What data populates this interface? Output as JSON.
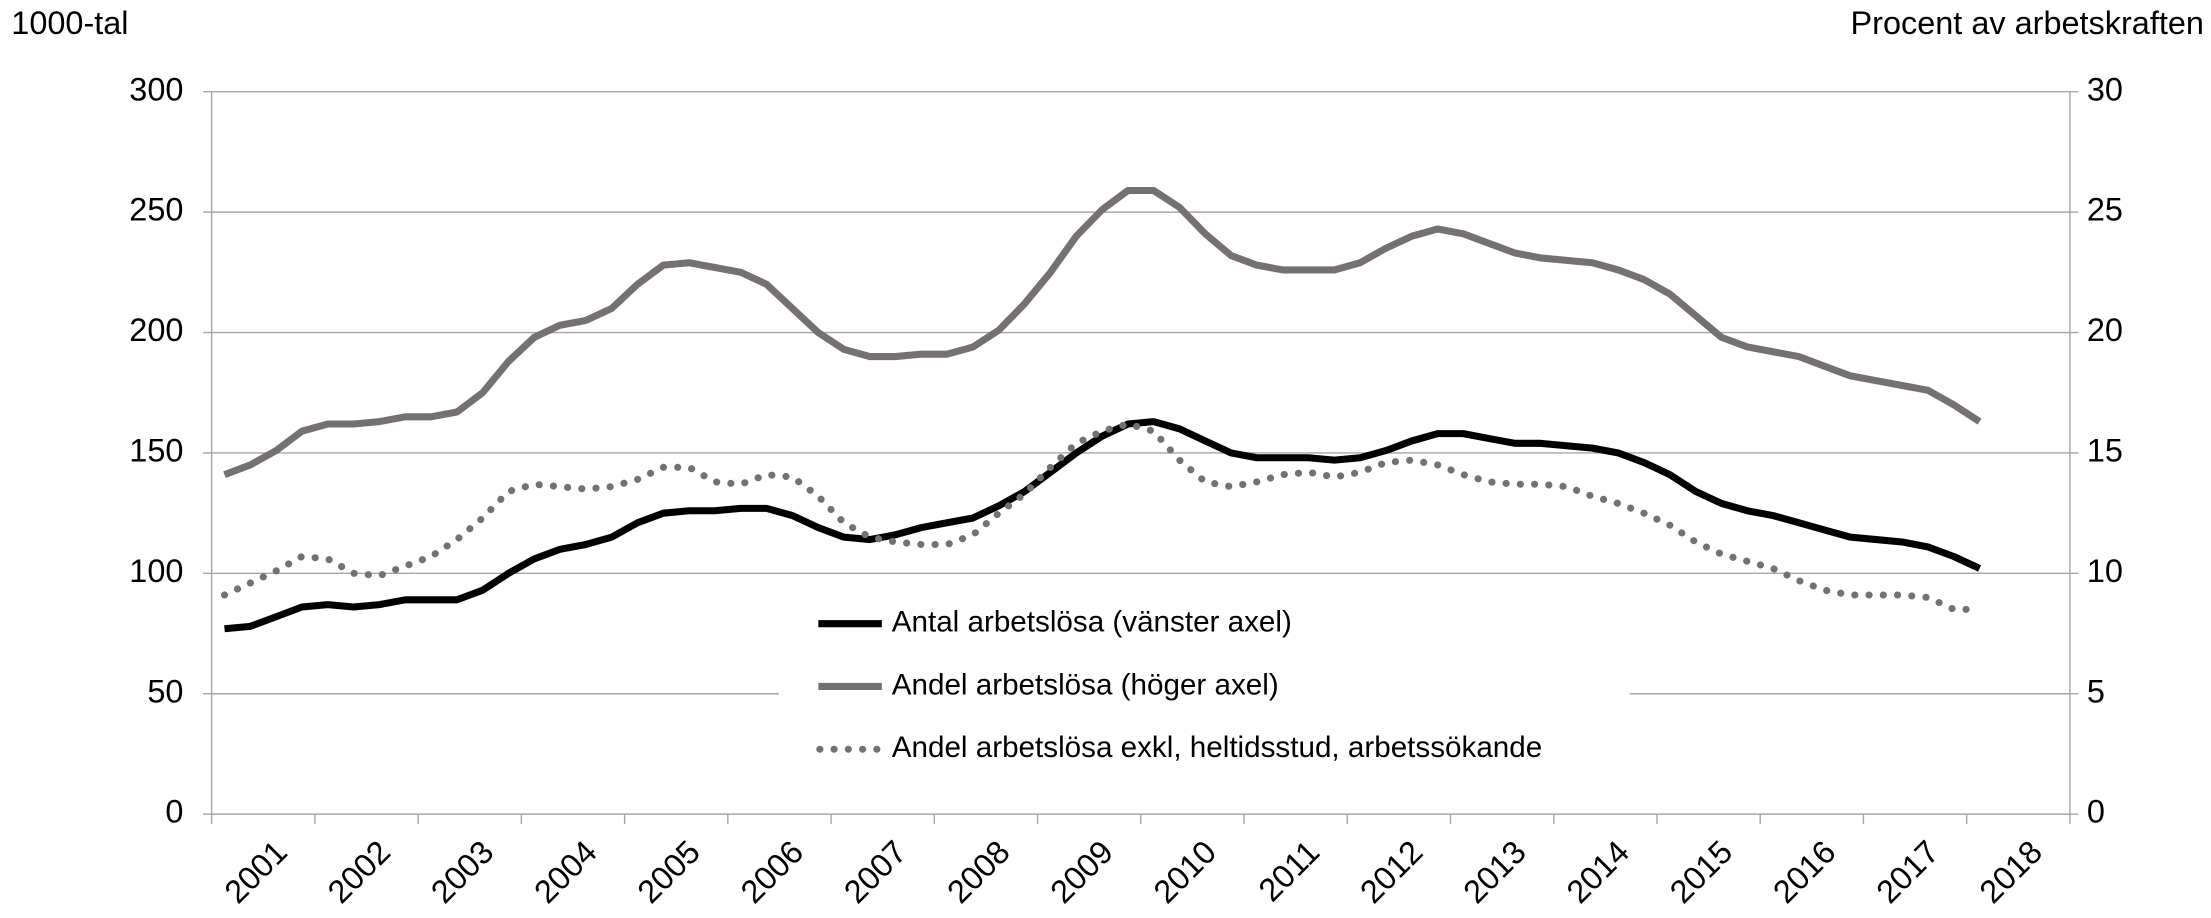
{
  "chart_data": {
    "type": "line",
    "y_label": "1000-tal",
    "y2_label": "Procent av arbetskraften",
    "x": [
      2001.125,
      2001.375,
      2001.625,
      2001.875,
      2002.125,
      2002.375,
      2002.625,
      2002.875,
      2003.125,
      2003.375,
      2003.625,
      2003.875,
      2004.125,
      2004.375,
      2004.625,
      2004.875,
      2005.125,
      2005.375,
      2005.625,
      2005.875,
      2006.125,
      2006.375,
      2006.625,
      2006.875,
      2007.125,
      2007.375,
      2007.625,
      2007.875,
      2008.125,
      2008.375,
      2008.625,
      2008.875,
      2009.125,
      2009.375,
      2009.625,
      2009.875,
      2010.125,
      2010.375,
      2010.625,
      2010.875,
      2011.125,
      2011.375,
      2011.625,
      2011.875,
      2012.125,
      2012.375,
      2012.625,
      2012.875,
      2013.125,
      2013.375,
      2013.625,
      2013.875,
      2014.125,
      2014.375,
      2014.625,
      2014.875,
      2015.125,
      2015.375,
      2015.625,
      2015.875,
      2016.125,
      2016.375,
      2016.625,
      2016.875,
      2017.125,
      2017.375,
      2017.625,
      2017.875,
      2018.125
    ],
    "xlim": [
      2001,
      2019
    ],
    "xticks": [
      2001,
      2002,
      2003,
      2004,
      2005,
      2006,
      2007,
      2008,
      2009,
      2010,
      2011,
      2012,
      2013,
      2014,
      2015,
      2016,
      2017,
      2018
    ],
    "ylim": [
      0,
      300
    ],
    "yticks": [
      0,
      50,
      100,
      150,
      200,
      250,
      300
    ],
    "y2lim": [
      0,
      30
    ],
    "y2ticks": [
      0,
      5,
      10,
      15,
      20,
      25,
      30
    ],
    "grid": true,
    "legend": "center",
    "series": [
      {
        "name": "Antal arbetslösa (vänster axel)",
        "color": "#000000",
        "style": "solid",
        "values": [
          77,
          78,
          82,
          86,
          87,
          86,
          87,
          89,
          89,
          89,
          93,
          100,
          106,
          110,
          112,
          115,
          121,
          125,
          126,
          126,
          127,
          127,
          124,
          119,
          115,
          114,
          116,
          119,
          121,
          123,
          128,
          134,
          142,
          150,
          157,
          162,
          163,
          160,
          155,
          150,
          148,
          148,
          148,
          147,
          148,
          151,
          155,
          158,
          158,
          156,
          154,
          154,
          153,
          152,
          150,
          146,
          141,
          134,
          129,
          126,
          124,
          121,
          118,
          115,
          114,
          113,
          111,
          107,
          102
        ]
      },
      {
        "name": "Andel arbetslösa (höger axel)",
        "color": "#767171",
        "style": "solid",
        "axis": "y2",
        "values": [
          14.1,
          14.5,
          15.1,
          15.9,
          16.2,
          16.2,
          16.3,
          16.5,
          16.5,
          16.7,
          17.5,
          18.8,
          19.8,
          20.3,
          20.5,
          21.0,
          22.0,
          22.8,
          22.9,
          22.7,
          22.5,
          22.0,
          21.0,
          20.0,
          19.3,
          19.0,
          19.0,
          19.1,
          19.1,
          19.4,
          20.1,
          21.2,
          22.5,
          24.0,
          25.1,
          25.9,
          25.9,
          25.2,
          24.1,
          23.2,
          22.8,
          22.6,
          22.6,
          22.6,
          22.9,
          23.5,
          24.0,
          24.3,
          24.1,
          23.7,
          23.3,
          23.1,
          23.0,
          22.9,
          22.6,
          22.2,
          21.6,
          20.7,
          19.8,
          19.4,
          19.2,
          19.0,
          18.6,
          18.2,
          18.0,
          17.8,
          17.6,
          17.0,
          16.3
        ]
      },
      {
        "name": "Andel arbetslösa exkl, heltidsstud, arbetssökande",
        "color": "#767171",
        "style": "dotted",
        "axis": "y2",
        "values": [
          9.1,
          9.6,
          10.1,
          10.7,
          10.6,
          10.0,
          9.9,
          10.3,
          10.7,
          11.4,
          12.3,
          13.4,
          13.7,
          13.6,
          13.5,
          13.6,
          13.9,
          14.4,
          14.4,
          13.8,
          13.7,
          14.1,
          14.0,
          13.2,
          12.1,
          11.5,
          11.3,
          11.2,
          11.2,
          11.6,
          12.5,
          13.3,
          14.4,
          15.4,
          15.9,
          16.2,
          15.9,
          14.7,
          13.8,
          13.6,
          13.8,
          14.1,
          14.2,
          14.0,
          14.2,
          14.6,
          14.7,
          14.5,
          14.1,
          13.8,
          13.7,
          13.7,
          13.6,
          13.2,
          12.9,
          12.5,
          12.0,
          11.3,
          10.8,
          10.5,
          10.2,
          9.7,
          9.3,
          9.1,
          9.1,
          9.1,
          9.0,
          8.5,
          8.5
        ]
      }
    ]
  }
}
